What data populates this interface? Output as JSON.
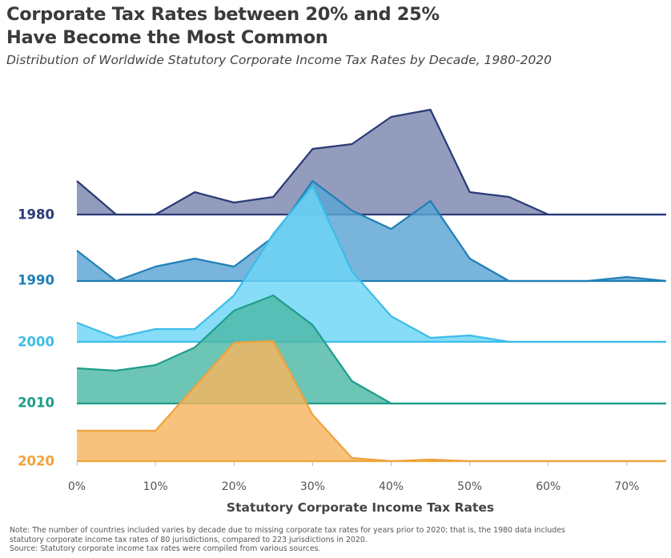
{
  "title_lines": [
    "Corporate Tax Rates between 20% and 25%",
    "Have Become the Most Common"
  ],
  "subtitle": "Distribution of Worldwide Statutory Corporate Income Tax Rates by Decade, 1980-2020",
  "note_lines": [
    "Note: The number of countries included varies by decade due to missing corporate tax rates for years prior to 2020; that is, the 1980 data includes",
    "statutory corporate income tax rates of 80 jurisdictions, compared to 223 jurisdictions in 2020.",
    "Source: Statutory corporate income tax rates were compiled from various sources."
  ],
  "chart_data": {
    "type": "area",
    "xlabel": "Statutory Corporate Income Tax Rates",
    "x": [
      0,
      5,
      10,
      15,
      20,
      25,
      30,
      35,
      40,
      45,
      50,
      55,
      60,
      65,
      70,
      75
    ],
    "xticks": [
      0,
      10,
      20,
      30,
      40,
      50,
      60,
      70
    ],
    "xtick_labels": [
      "0%",
      "10%",
      "20%",
      "30%",
      "40%",
      "50%",
      "60%",
      "70%"
    ],
    "xlim": [
      0,
      75
    ],
    "series": [
      {
        "name": "1980",
        "color": "#2b3a78",
        "fill": "#7b86ad",
        "values": [
          42,
          0,
          0,
          28,
          15,
          22,
          82,
          88,
          122,
          131,
          28,
          22,
          0,
          0,
          0,
          0
        ]
      },
      {
        "name": "1990",
        "color": "#1f7fb8",
        "fill": "#5aa4d3",
        "values": [
          38,
          0,
          18,
          28,
          18,
          55,
          125,
          88,
          65,
          100,
          28,
          0,
          0,
          0,
          5,
          0
        ]
      },
      {
        "name": "2000",
        "color": "#3cbde8",
        "fill": "#6dd4f5",
        "values": [
          24,
          5,
          16,
          16,
          58,
          135,
          195,
          88,
          32,
          5,
          8,
          0,
          0,
          0,
          0,
          0
        ]
      },
      {
        "name": "2010",
        "color": "#1e9e8a",
        "fill": "#4db8a6",
        "values": [
          44,
          41,
          48,
          70,
          116,
          135,
          98,
          28,
          0,
          0,
          0,
          0,
          0,
          0,
          0,
          0
        ]
      },
      {
        "name": "2020",
        "color": "#f0a23b",
        "fill": "#f5b45e",
        "values": [
          38,
          38,
          38,
          93,
          148,
          150,
          58,
          4,
          0,
          2,
          0,
          0,
          0,
          0,
          0,
          0
        ]
      }
    ]
  }
}
